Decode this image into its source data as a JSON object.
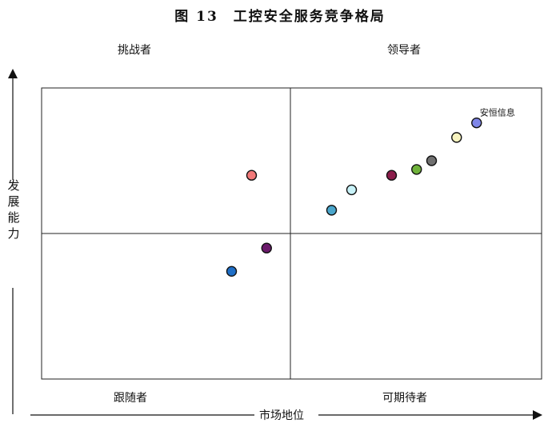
{
  "title": "图 13　工控安全服务竞争格局",
  "quadrants": {
    "top_left": "挑战者",
    "top_right": "领导者",
    "bottom_left": "跟随者",
    "bottom_right": "可期待者"
  },
  "axes": {
    "y_label": "发展能力",
    "x_label": "市场地位"
  },
  "chart_data": {
    "type": "scatter",
    "title": "图 13　工控安全服务竞争格局",
    "xlabel": "市场地位",
    "ylabel": "发展能力",
    "xlim": [
      0,
      100
    ],
    "ylim": [
      0,
      100
    ],
    "grid": false,
    "points": [
      {
        "label": "安恒信息",
        "x": 87,
        "y": 88,
        "color": "#7f86e8"
      },
      {
        "label": "",
        "x": 83,
        "y": 83,
        "color": "#f7f3bf"
      },
      {
        "label": "",
        "x": 78,
        "y": 75,
        "color": "#707070"
      },
      {
        "label": "",
        "x": 75,
        "y": 72,
        "color": "#6fb23a"
      },
      {
        "label": "",
        "x": 70,
        "y": 70,
        "color": "#8b1d4b"
      },
      {
        "label": "",
        "x": 62,
        "y": 65,
        "color": "#c8f2f8"
      },
      {
        "label": "",
        "x": 58,
        "y": 58,
        "color": "#4aa6cc"
      },
      {
        "label": "",
        "x": 42,
        "y": 70,
        "color": "#f27979"
      },
      {
        "label": "",
        "x": 45,
        "y": 45,
        "color": "#6b1a6b"
      },
      {
        "label": "",
        "x": 38,
        "y": 37,
        "color": "#1f6fc7"
      }
    ]
  }
}
